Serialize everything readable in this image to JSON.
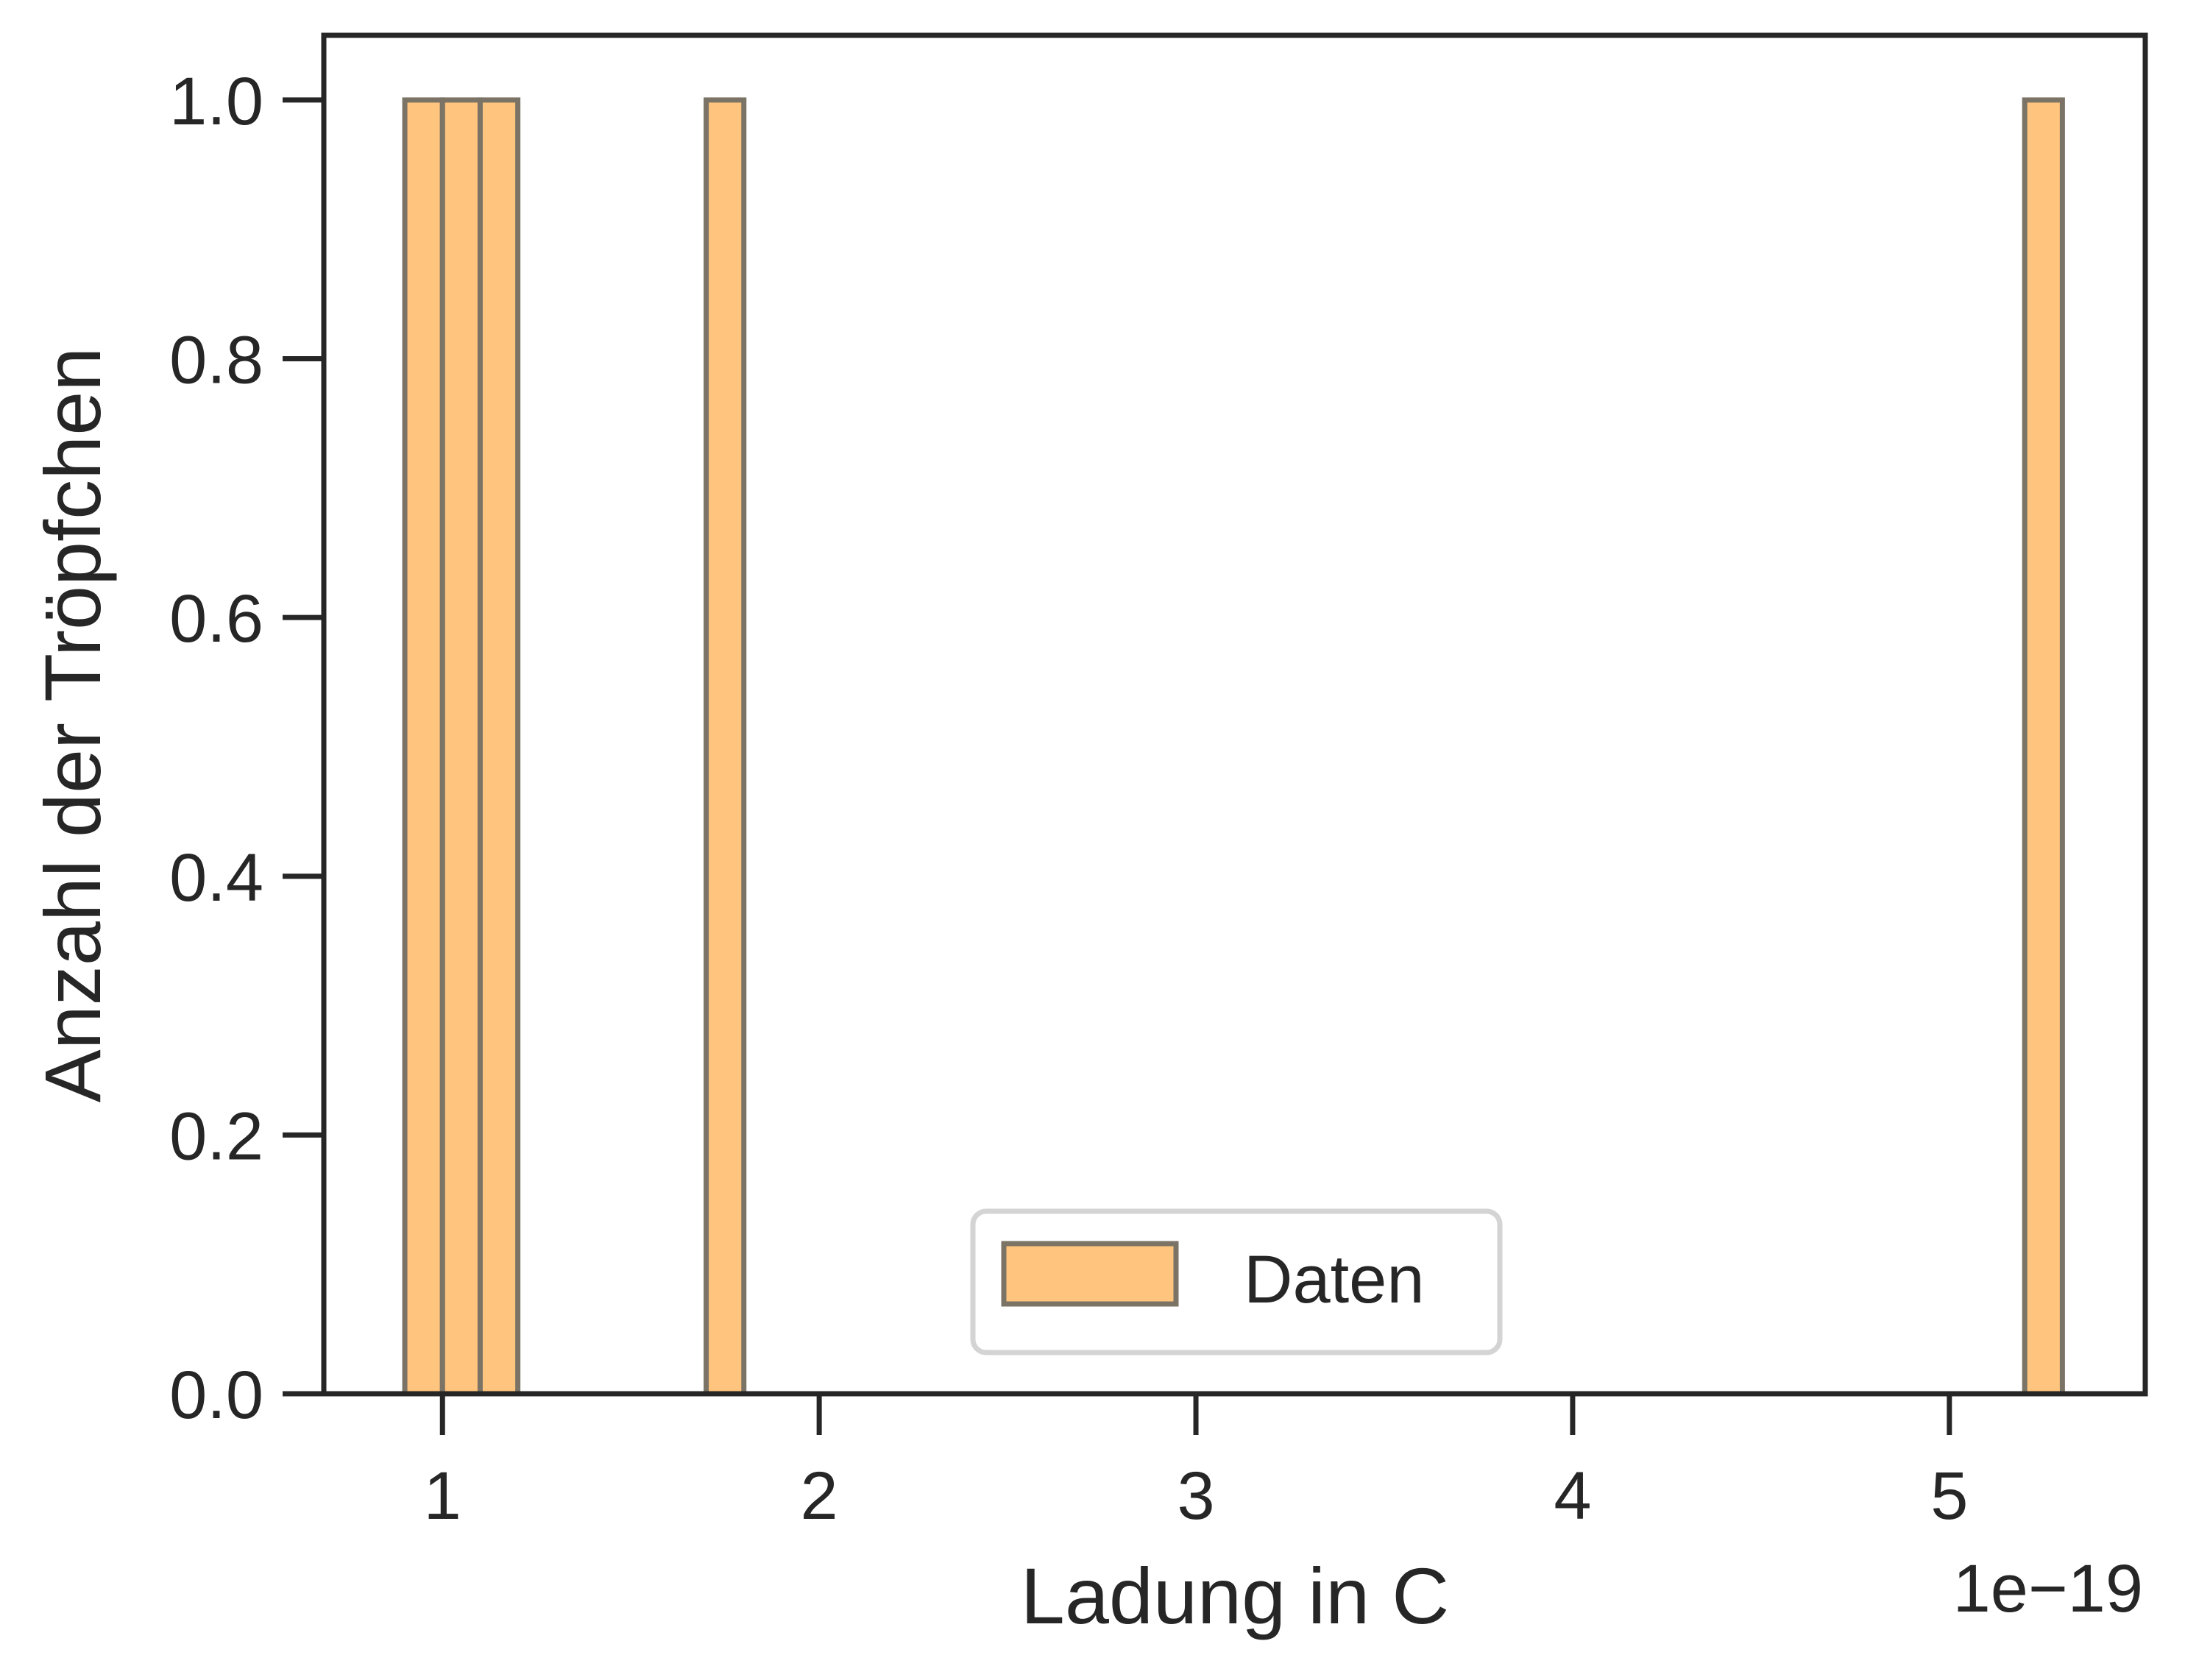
{
  "chart_data": {
    "type": "bar",
    "bars": [
      {
        "x0": 0.9,
        "x1": 1.0,
        "value": 1
      },
      {
        "x0": 1.0,
        "x1": 1.1,
        "value": 1
      },
      {
        "x0": 1.1,
        "x1": 1.2,
        "value": 1
      },
      {
        "x0": 1.7,
        "x1": 1.8,
        "value": 1
      },
      {
        "x0": 5.2,
        "x1": 5.3,
        "value": 1
      }
    ],
    "xlabel": "Ladung in C",
    "ylabel": "Anzahl der Tröpfchen",
    "x_offset_label": "1e−19",
    "xlim": [
      0.685,
      5.52
    ],
    "ylim": [
      0.0,
      1.05
    ],
    "x_ticks": [
      1,
      2,
      3,
      4,
      5
    ],
    "x_tick_labels": [
      "1",
      "2",
      "3",
      "4",
      "5"
    ],
    "y_ticks": [
      0.0,
      0.2,
      0.4,
      0.6,
      0.8,
      1.0
    ],
    "y_tick_labels": [
      "0.0",
      "0.2",
      "0.4",
      "0.6",
      "0.8",
      "1.0"
    ],
    "grid": false,
    "legend": {
      "position": "lower-center",
      "entries": [
        "Daten"
      ]
    },
    "colors": {
      "bar_fill": "#ffc47d",
      "bar_edge": "#7a7366",
      "axes": "#262626",
      "legend_border": "#d4d4d4"
    }
  }
}
